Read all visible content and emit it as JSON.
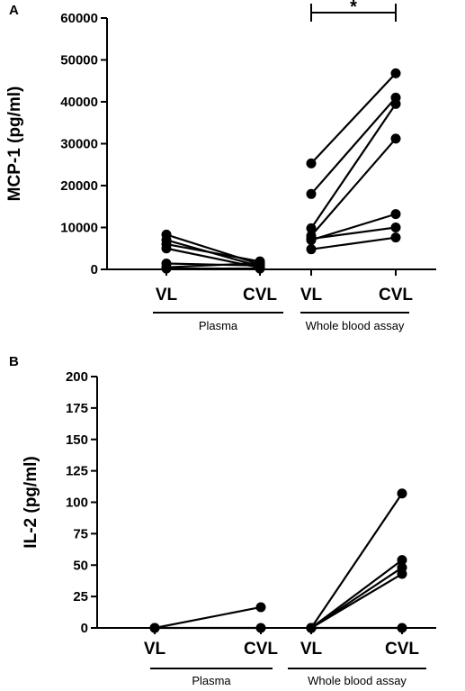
{
  "chart_data": [
    {
      "type": "scatter",
      "panel_label": "A",
      "ylabel": "MCP-1 (pg/ml)",
      "ylim": [
        0,
        60000
      ],
      "yticks": [
        0,
        10000,
        20000,
        30000,
        40000,
        50000,
        60000
      ],
      "categories": [
        "VL",
        "CVL",
        "VL",
        "CVL"
      ],
      "groups": [
        {
          "label": "Plasma",
          "categories": [
            0,
            1
          ]
        },
        {
          "label": "Whole blood assay",
          "categories": [
            2,
            3
          ]
        }
      ],
      "paired_series": [
        {
          "group": 0,
          "pairs": [
            [
              8300,
              1200
            ],
            [
              7000,
              700
            ],
            [
              6000,
              1900
            ],
            [
              5000,
              400
            ],
            [
              1400,
              900
            ],
            [
              500,
              1500
            ],
            [
              200,
              200
            ]
          ]
        },
        {
          "group": 1,
          "pairs": [
            [
              25300,
              46800
            ],
            [
              18000,
              41000
            ],
            [
              9800,
              39500
            ],
            [
              8000,
              31200
            ],
            [
              7000,
              13200
            ],
            [
              7300,
              10000
            ],
            [
              4800,
              7600
            ]
          ]
        }
      ],
      "significance": {
        "between": [
          2,
          3
        ],
        "label": "*"
      },
      "grid": false
    },
    {
      "type": "scatter",
      "panel_label": "B",
      "ylabel": "IL-2 (pg/ml)",
      "ylim": [
        0,
        200
      ],
      "yticks": [
        0,
        25,
        50,
        75,
        100,
        125,
        150,
        175,
        200
      ],
      "categories": [
        "VL",
        "CVL",
        "VL",
        "CVL"
      ],
      "groups": [
        {
          "label": "Plasma",
          "categories": [
            0,
            1
          ]
        },
        {
          "label": "Whole blood assay",
          "categories": [
            2,
            3
          ]
        }
      ],
      "paired_series": [
        {
          "group": 0,
          "pairs": [
            [
              0,
              16.5
            ],
            [
              0,
              0
            ]
          ]
        },
        {
          "group": 1,
          "pairs": [
            [
              0,
              107
            ],
            [
              0,
              54
            ],
            [
              0,
              48
            ],
            [
              0,
              43
            ],
            [
              0,
              0
            ]
          ]
        }
      ],
      "grid": false
    }
  ]
}
